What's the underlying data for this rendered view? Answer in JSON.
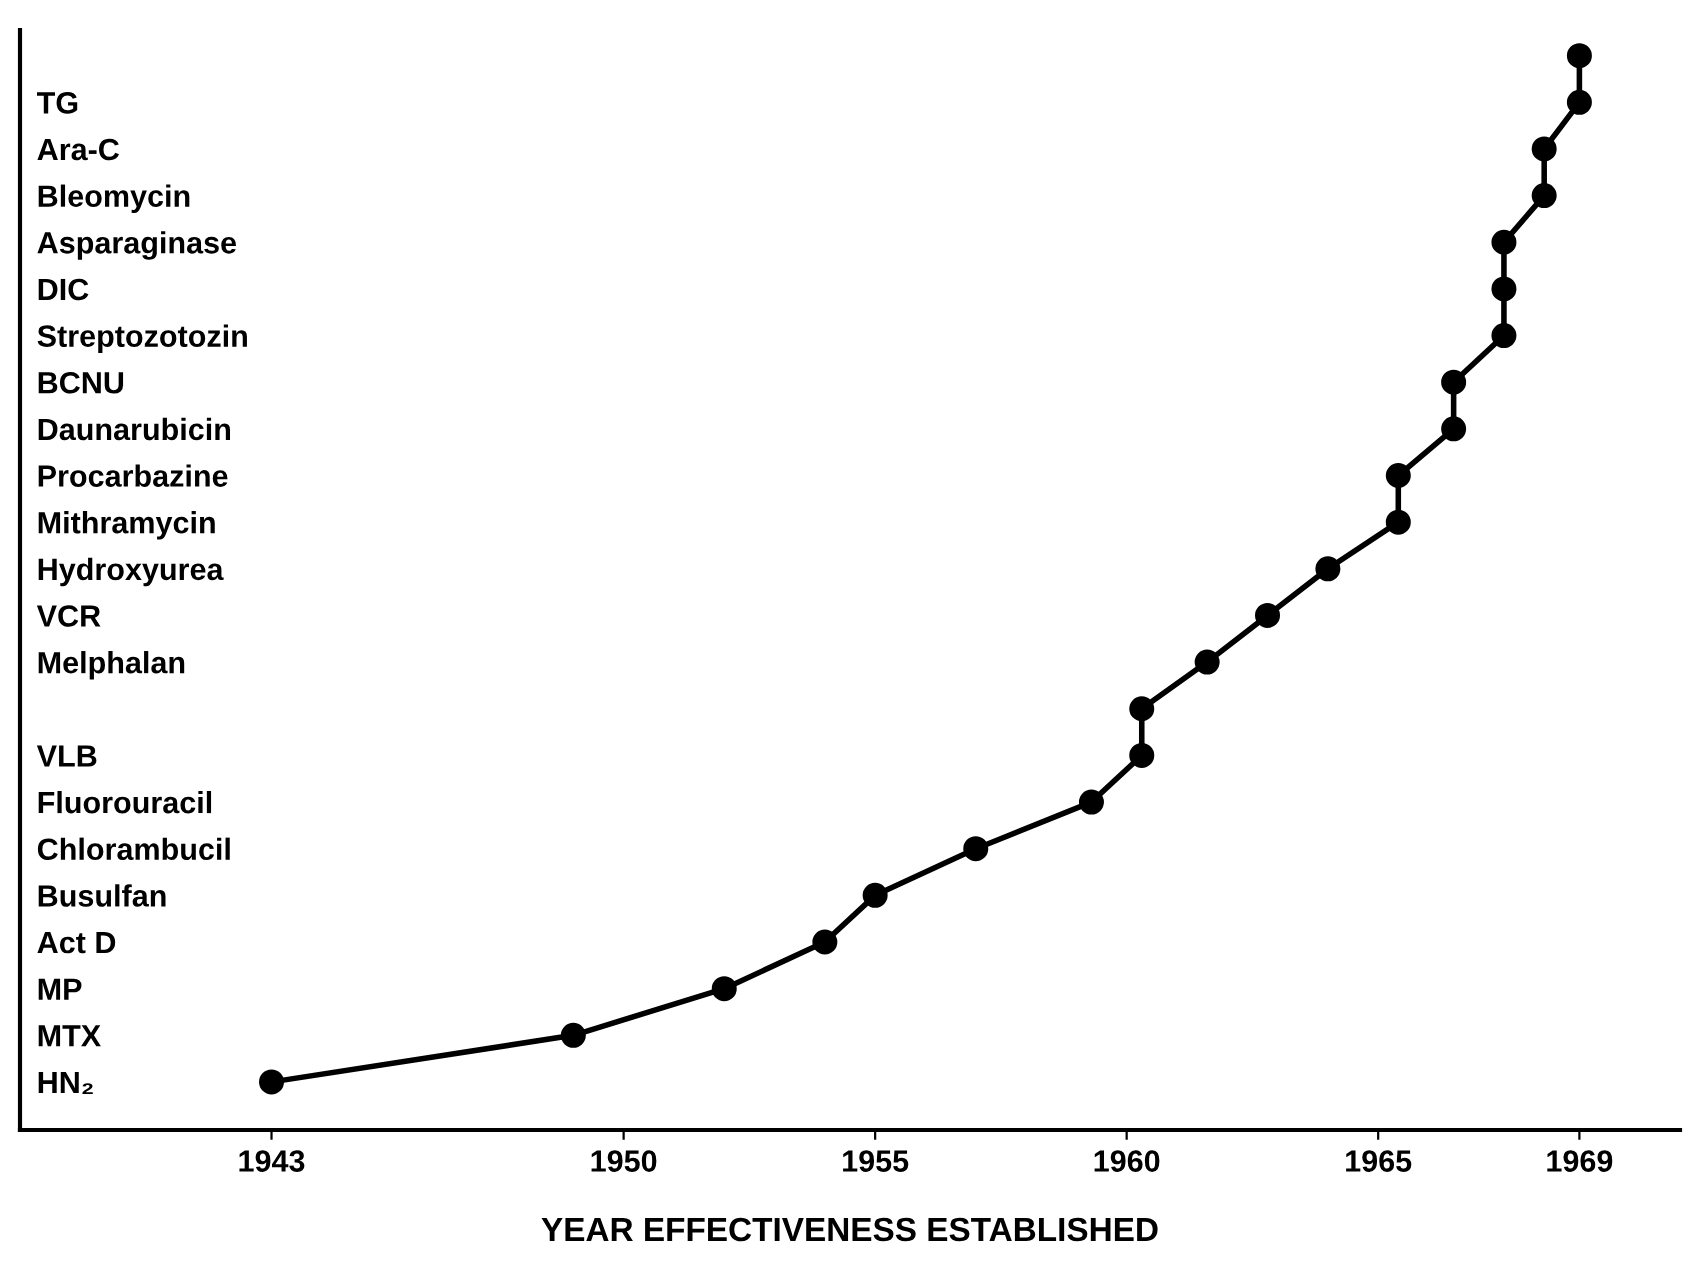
{
  "chart_data": {
    "type": "line",
    "orientation": "horizontal",
    "xlabel": "YEAR EFFECTIVENESS ESTABLISHED",
    "categories": [
      null,
      "TG",
      "Ara-C",
      "Bleomycin",
      "Asparaginase",
      "DIC",
      "Streptozotozin",
      "BCNU",
      "Daunarubicin",
      "Procarbazine",
      "Mithramycin",
      "Hydroxyurea",
      "VCR",
      "Melphalan",
      null,
      "VLB",
      "Fluorouracil",
      "Chlorambucil",
      "Busulfan",
      "Act D",
      "MP",
      "MTX",
      "HN₂"
    ],
    "values": [
      1969,
      1969,
      1968.3,
      1968.3,
      1967.5,
      1967.5,
      1967.5,
      1966.5,
      1966.5,
      1965.4,
      1965.4,
      1964,
      1962.8,
      1961.6,
      1960.3,
      1960.3,
      1959.3,
      1957,
      1955,
      1954,
      1952,
      1949,
      1943
    ],
    "color": "#000000",
    "marker": "circle",
    "line_style": "solid",
    "xlim": [
      1938,
      1971
    ],
    "xticks": [
      1943,
      1950,
      1955,
      1960,
      1965,
      1969
    ]
  }
}
